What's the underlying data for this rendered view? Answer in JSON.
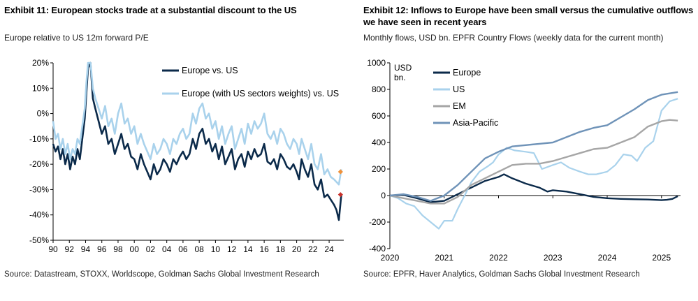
{
  "colors": {
    "navy": "#0b2a4a",
    "light_blue": "#a9d2ec",
    "grey": "#a6a6a6",
    "steel_blue": "#6f93b8",
    "orange_marker": "#f0913a",
    "red_marker": "#c8312b",
    "axis": "#000000"
  },
  "chart_data": [
    {
      "type": "line",
      "title": "Exhibit 11: European stocks trade at a substantial discount to the US",
      "subtitle": "Europe relative to US 12m forward P/E",
      "source": "Source: Datastream, STOXX, Worldscope, Goldman Sachs Global Investment Research",
      "xlim": [
        1990,
        2025.8
      ],
      "ylim": [
        -50,
        20
      ],
      "x_ticks": [
        1990,
        1992,
        1994,
        1996,
        1998,
        2000,
        2002,
        2004,
        2006,
        2008,
        2010,
        2012,
        2014,
        2016,
        2018,
        2020,
        2022,
        2024
      ],
      "x_tick_labels": [
        "90",
        "92",
        "94",
        "96",
        "98",
        "00",
        "02",
        "04",
        "06",
        "08",
        "10",
        "12",
        "14",
        "16",
        "18",
        "20",
        "22",
        "24"
      ],
      "y_ticks": [
        20,
        10,
        0,
        -10,
        -20,
        -30,
        -40,
        -50
      ],
      "y_tick_labels": [
        "20%",
        "10%",
        "0%",
        "-10%",
        "-20%",
        "-30%",
        "-40%",
        "-50%"
      ],
      "legend_position": "top-right",
      "series": [
        {
          "name": "Europe vs. US",
          "color": "navy",
          "x": [
            1990.0,
            1990.3,
            1990.6,
            1990.9,
            1991.2,
            1991.5,
            1991.8,
            1992.1,
            1992.4,
            1992.7,
            1993.0,
            1993.3,
            1993.6,
            1993.9,
            1994.1,
            1994.3,
            1994.6,
            1994.9,
            1995.2,
            1995.6,
            1996.0,
            1996.4,
            1996.8,
            1997.2,
            1997.6,
            1998.0,
            1998.4,
            1998.8,
            1999.2,
            1999.6,
            2000.0,
            2000.4,
            2000.8,
            2001.2,
            2001.6,
            2002.0,
            2002.4,
            2002.8,
            2003.2,
            2003.6,
            2004.0,
            2004.4,
            2004.8,
            2005.2,
            2005.6,
            2006.0,
            2006.4,
            2006.8,
            2007.2,
            2007.6,
            2008.0,
            2008.4,
            2008.8,
            2009.2,
            2009.6,
            2010.0,
            2010.4,
            2010.8,
            2011.2,
            2011.6,
            2012.0,
            2012.4,
            2012.8,
            2013.2,
            2013.6,
            2014.0,
            2014.4,
            2014.8,
            2015.2,
            2015.6,
            2016.0,
            2016.4,
            2016.8,
            2017.2,
            2017.6,
            2018.0,
            2018.4,
            2018.8,
            2019.2,
            2019.6,
            2020.0,
            2020.3,
            2020.6,
            2021.0,
            2021.4,
            2021.8,
            2022.2,
            2022.6,
            2023.0,
            2023.4,
            2023.8,
            2024.2,
            2024.6,
            2024.9,
            2025.2,
            2025.5
          ],
          "values": [
            -12,
            -15,
            -13,
            -18,
            -14,
            -20,
            -16,
            -22,
            -17,
            -20,
            -14,
            -18,
            -10,
            -2,
            8,
            18,
            20,
            6,
            2,
            -3,
            -8,
            -5,
            -12,
            -10,
            -16,
            -12,
            -8,
            -14,
            -12,
            -17,
            -18,
            -22,
            -16,
            -20,
            -23,
            -26,
            -20,
            -24,
            -22,
            -18,
            -20,
            -23,
            -18,
            -20,
            -17,
            -15,
            -18,
            -16,
            -10,
            -14,
            -8,
            -6,
            -12,
            -10,
            -15,
            -12,
            -18,
            -13,
            -20,
            -17,
            -14,
            -22,
            -18,
            -16,
            -21,
            -15,
            -18,
            -14,
            -17,
            -16,
            -12,
            -19,
            -20,
            -18,
            -22,
            -16,
            -18,
            -21,
            -22,
            -20,
            -23,
            -26,
            -18,
            -22,
            -25,
            -20,
            -28,
            -30,
            -26,
            -33,
            -32,
            -34,
            -36,
            -38,
            -42,
            -32
          ]
        },
        {
          "name": "Europe (with US sectors weights) vs. US",
          "color": "light_blue",
          "x": [
            1990.0,
            1990.3,
            1990.6,
            1990.9,
            1991.2,
            1991.5,
            1991.8,
            1992.1,
            1992.4,
            1992.7,
            1993.0,
            1993.3,
            1993.6,
            1993.9,
            1994.1,
            1994.3,
            1994.6,
            1994.9,
            1995.2,
            1995.6,
            1996.0,
            1996.4,
            1996.8,
            1997.2,
            1997.6,
            1998.0,
            1998.4,
            1998.8,
            1999.2,
            1999.6,
            2000.0,
            2000.4,
            2000.8,
            2001.2,
            2001.6,
            2002.0,
            2002.4,
            2002.8,
            2003.2,
            2003.6,
            2004.0,
            2004.4,
            2004.8,
            2005.2,
            2005.6,
            2006.0,
            2006.4,
            2006.8,
            2007.2,
            2007.6,
            2008.0,
            2008.4,
            2008.8,
            2009.2,
            2009.6,
            2010.0,
            2010.4,
            2010.8,
            2011.2,
            2011.6,
            2012.0,
            2012.4,
            2012.8,
            2013.2,
            2013.6,
            2014.0,
            2014.4,
            2014.8,
            2015.2,
            2015.6,
            2016.0,
            2016.4,
            2016.8,
            2017.2,
            2017.6,
            2018.0,
            2018.4,
            2018.8,
            2019.2,
            2019.6,
            2020.0,
            2020.3,
            2020.6,
            2021.0,
            2021.4,
            2021.8,
            2022.2,
            2022.6,
            2023.0,
            2023.4,
            2023.8,
            2024.2,
            2024.6,
            2024.9,
            2025.2,
            2025.5
          ],
          "values": [
            -3,
            -10,
            -8,
            -14,
            -10,
            -16,
            -12,
            -18,
            -14,
            -16,
            -10,
            -12,
            -5,
            2,
            12,
            20,
            20,
            10,
            6,
            2,
            -2,
            3,
            -5,
            -2,
            -8,
            0,
            4,
            -4,
            -2,
            -8,
            -5,
            -12,
            -8,
            -12,
            -15,
            -18,
            -12,
            -16,
            -14,
            -10,
            -12,
            -16,
            -10,
            -12,
            -8,
            -6,
            -10,
            -8,
            0,
            -4,
            2,
            4,
            -2,
            0,
            -6,
            -3,
            -10,
            -5,
            -12,
            -8,
            -5,
            -14,
            -10,
            -6,
            -12,
            -4,
            -8,
            -3,
            -6,
            -4,
            0,
            -8,
            -10,
            -7,
            -12,
            -6,
            -8,
            -12,
            -14,
            -10,
            -12,
            -16,
            -10,
            -14,
            -18,
            -12,
            -20,
            -22,
            -16,
            -24,
            -22,
            -25,
            -26,
            -27,
            -28,
            -22
          ]
        }
      ],
      "markers": [
        {
          "x": 2025.4,
          "y": -23,
          "color": "orange_marker"
        },
        {
          "x": 2025.4,
          "y": -32,
          "color": "red_marker"
        }
      ]
    },
    {
      "type": "line",
      "title": "Exhibit 12: Inflows to Europe have been small versus the cumulative outflows we have seen in recent years",
      "subtitle": "Monthly flows, USD bn. EPFR Country Flows (weekly data for the current month)",
      "source": "Source: EPFR, Haver Analytics, Goldman Sachs Global Investment Research",
      "unit_label": "USD bn.",
      "xlim": [
        2020,
        2025.35
      ],
      "ylim": [
        -400,
        1000
      ],
      "x_ticks": [
        2020,
        2021,
        2022,
        2023,
        2024,
        2025
      ],
      "x_tick_labels": [
        "2020",
        "2021",
        "2022",
        "2023",
        "2024",
        "2025"
      ],
      "y_ticks": [
        1000,
        800,
        600,
        400,
        200,
        0,
        -200,
        -400
      ],
      "y_tick_labels": [
        "1000",
        "800",
        "600",
        "400",
        "200",
        "0",
        "-200",
        "-400"
      ],
      "legend_position": "top-left",
      "series": [
        {
          "name": "Europe",
          "color": "navy",
          "x": [
            2020.0,
            2020.25,
            2020.5,
            2020.75,
            2021.0,
            2021.25,
            2021.5,
            2021.75,
            2022.0,
            2022.1,
            2022.25,
            2022.5,
            2022.75,
            2022.9,
            2023.0,
            2023.25,
            2023.5,
            2023.75,
            2024.0,
            2024.25,
            2024.5,
            2024.75,
            2025.0,
            2025.1,
            2025.2,
            2025.3
          ],
          "values": [
            0,
            5,
            -20,
            -50,
            -40,
            10,
            60,
            110,
            140,
            160,
            130,
            90,
            60,
            30,
            40,
            30,
            10,
            -10,
            -20,
            -25,
            -28,
            -30,
            -35,
            -32,
            -25,
            -5
          ]
        },
        {
          "name": "US",
          "color": "light_blue",
          "x": [
            2020.0,
            2020.15,
            2020.3,
            2020.45,
            2020.6,
            2020.75,
            2020.9,
            2021.0,
            2021.15,
            2021.25,
            2021.4,
            2021.5,
            2021.65,
            2021.8,
            2021.9,
            2022.0,
            2022.15,
            2022.3,
            2022.5,
            2022.65,
            2022.8,
            2023.0,
            2023.15,
            2023.3,
            2023.5,
            2023.65,
            2023.8,
            2024.0,
            2024.15,
            2024.3,
            2024.45,
            2024.55,
            2024.7,
            2024.85,
            2025.0,
            2025.15,
            2025.3
          ],
          "values": [
            0,
            -20,
            -60,
            -80,
            -150,
            -200,
            -250,
            -190,
            -190,
            -100,
            20,
            100,
            180,
            220,
            250,
            310,
            360,
            340,
            330,
            320,
            200,
            230,
            250,
            210,
            180,
            160,
            160,
            180,
            230,
            310,
            300,
            260,
            360,
            410,
            640,
            710,
            730
          ]
        },
        {
          "name": "EM",
          "color": "grey",
          "x": [
            2020.0,
            2020.25,
            2020.5,
            2020.75,
            2021.0,
            2021.25,
            2021.5,
            2021.75,
            2022.0,
            2022.25,
            2022.5,
            2022.75,
            2023.0,
            2023.25,
            2023.5,
            2023.75,
            2024.0,
            2024.25,
            2024.5,
            2024.75,
            2025.0,
            2025.15,
            2025.3
          ],
          "values": [
            0,
            -20,
            -40,
            -60,
            -60,
            -10,
            80,
            130,
            180,
            230,
            240,
            240,
            260,
            290,
            320,
            350,
            360,
            400,
            440,
            520,
            560,
            570,
            565
          ]
        },
        {
          "name": "Asia-Pacific",
          "color": "steel_blue",
          "x": [
            2020.0,
            2020.25,
            2020.5,
            2020.75,
            2021.0,
            2021.25,
            2021.5,
            2021.75,
            2022.0,
            2022.25,
            2022.5,
            2022.75,
            2023.0,
            2023.25,
            2023.5,
            2023.75,
            2024.0,
            2024.25,
            2024.5,
            2024.75,
            2025.0,
            2025.15,
            2025.3
          ],
          "values": [
            0,
            10,
            -10,
            -40,
            0,
            80,
            180,
            280,
            330,
            370,
            380,
            390,
            400,
            440,
            480,
            510,
            530,
            590,
            650,
            720,
            760,
            770,
            780
          ]
        }
      ]
    }
  ]
}
